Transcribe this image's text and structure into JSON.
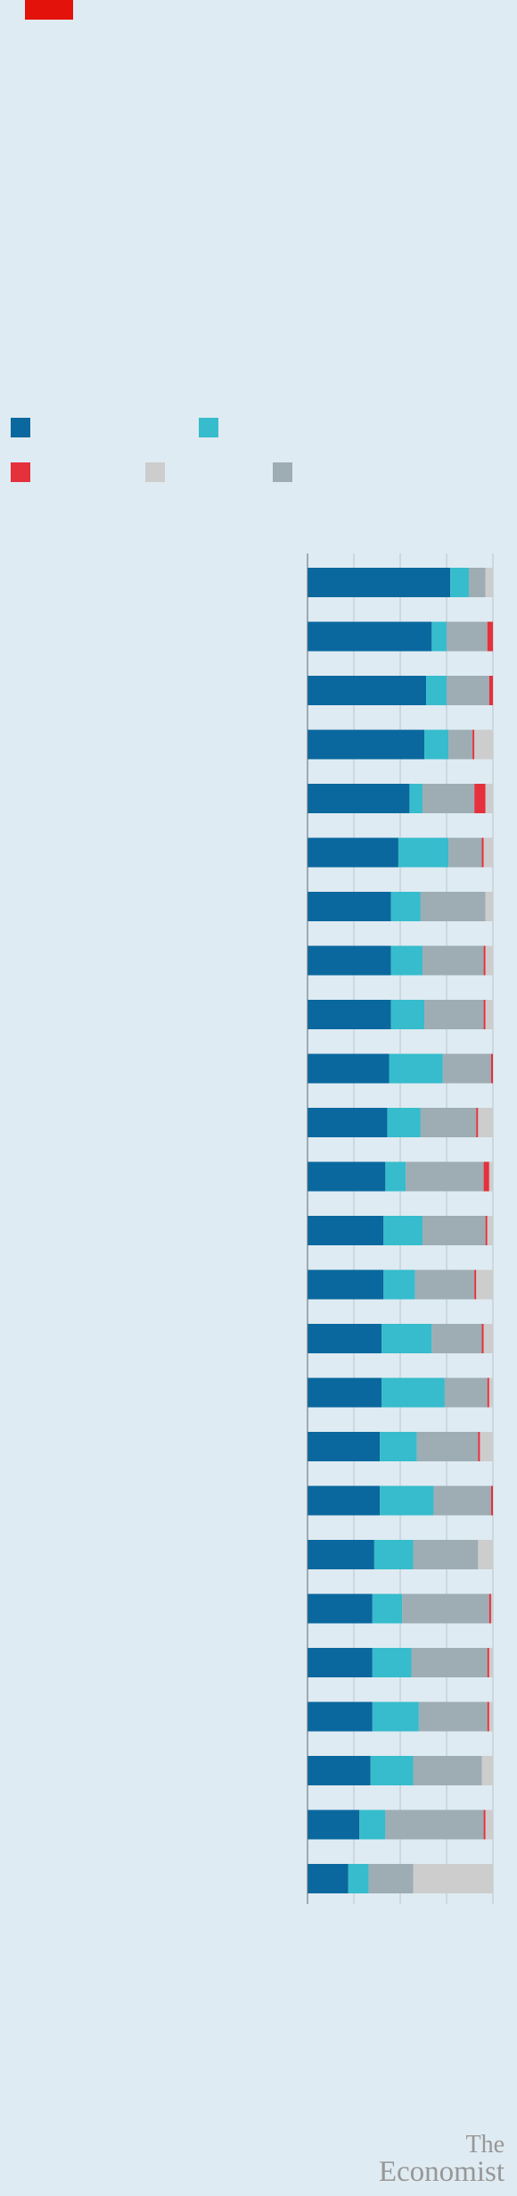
{
  "brand": {
    "tag_color": "#e3120b",
    "logo_line1": "The",
    "logo_line2": "Economist"
  },
  "colors": {
    "series1": "#0a689e",
    "series2": "#36bccc",
    "series3": "#e4313b",
    "series4": "#cdcdcd",
    "series5": "#9eacb4",
    "background": "#dfebf2",
    "gridline": "#b8c6cf",
    "axis": "#5f6b73"
  },
  "legend": {
    "items": [
      {
        "name": "",
        "color_key": "series1"
      },
      {
        "name": "",
        "color_key": "series2"
      },
      {
        "name": "",
        "color_key": "series3"
      },
      {
        "name": "",
        "color_key": "series4"
      },
      {
        "name": "",
        "color_key": "series5"
      }
    ]
  },
  "chart_data": {
    "type": "bar",
    "orientation": "horizontal",
    "stacked": true,
    "title": "",
    "xlabel": "",
    "ylabel": "",
    "xlim": [
      0,
      100
    ],
    "grid": true,
    "legend_position": "top",
    "categories": [
      "",
      "",
      "",
      "",
      "",
      "",
      "",
      "",
      "",
      "",
      "",
      "",
      "",
      "",
      "",
      "",
      "",
      "",
      "",
      "",
      "",
      "",
      "",
      "",
      ""
    ],
    "series": [
      {
        "name": "",
        "color_key": "series1",
        "values": [
          77,
          67,
          64,
          63,
          55,
          49,
          45,
          45,
          45,
          44,
          43,
          42,
          41,
          41,
          40,
          40,
          39,
          39,
          36,
          35,
          35,
          35,
          34,
          28,
          22
        ]
      },
      {
        "name": "",
        "color_key": "series2",
        "values": [
          10,
          8,
          11,
          13,
          7,
          27,
          16,
          17,
          18,
          29,
          18,
          11,
          21,
          17,
          27,
          34,
          20,
          29,
          21,
          16,
          21,
          25,
          23,
          14,
          11
        ]
      },
      {
        "name": "",
        "color_key": "series5",
        "values": [
          9,
          22,
          23,
          13,
          28,
          18,
          35,
          33,
          32,
          26,
          30,
          42,
          34,
          32,
          27,
          23,
          33,
          31,
          35,
          47,
          41,
          37,
          37,
          53,
          24
        ]
      },
      {
        "name": "",
        "color_key": "series3",
        "values": [
          0,
          3,
          2,
          1,
          6,
          1,
          0,
          1,
          1,
          1,
          1,
          3,
          1,
          1,
          1,
          1,
          1,
          1,
          0,
          1,
          1,
          1,
          0,
          1,
          0
        ]
      },
      {
        "name": "",
        "color_key": "series4",
        "values": [
          4,
          0,
          0,
          10,
          4,
          5,
          4,
          4,
          4,
          0,
          8,
          2,
          3,
          9,
          5,
          2,
          7,
          0,
          8,
          1,
          2,
          2,
          6,
          4,
          43
        ]
      }
    ]
  }
}
